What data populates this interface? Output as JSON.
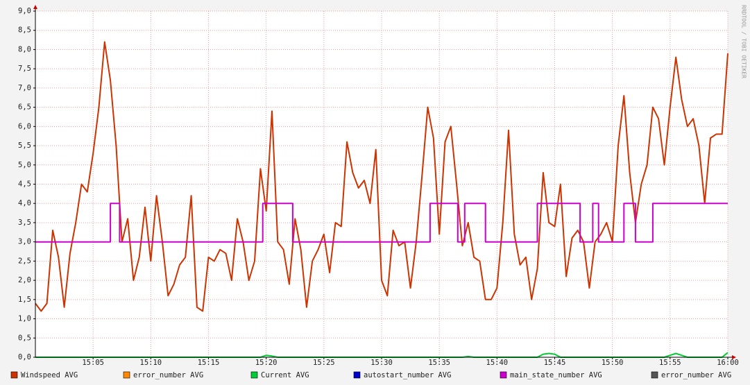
{
  "chart_data": {
    "type": "line",
    "watermark": "RRDTOOL / TOBI OETIKER",
    "x": [
      0,
      0.5,
      1,
      1.5,
      2,
      2.5,
      3,
      3.5,
      4,
      4.5,
      5,
      5.5,
      6,
      6.5,
      7,
      7.5,
      8,
      8.5,
      9,
      9.5,
      10,
      10.5,
      11,
      11.5,
      12,
      12.5,
      13,
      13.5,
      14,
      14.5,
      15,
      15.5,
      16,
      16.5,
      17,
      17.5,
      18,
      18.5,
      19,
      19.5,
      20,
      20.5,
      21,
      21.5,
      22,
      22.5,
      23,
      23.5,
      24,
      24.5,
      25,
      25.5,
      26,
      26.5,
      27,
      27.5,
      28,
      28.5,
      29,
      29.5,
      30,
      30.5,
      31,
      31.5,
      32,
      32.5,
      33,
      33.5,
      34,
      34.5,
      35,
      35.5,
      36,
      36.5,
      37,
      37.5,
      38,
      38.5,
      39,
      39.5,
      40,
      40.5,
      41,
      41.5,
      42,
      42.5,
      43,
      43.5,
      44,
      44.5,
      45,
      45.5,
      46,
      46.5,
      47,
      47.5,
      48,
      48.5,
      49,
      49.5,
      50,
      50.5,
      51,
      51.5,
      52,
      52.5,
      53,
      53.5,
      54,
      54.5,
      55,
      55.5,
      56,
      56.5,
      57,
      57.5,
      58,
      58.5,
      59,
      59.5,
      60
    ],
    "xlim": [
      0,
      60
    ],
    "xticks": [
      {
        "value": 5,
        "label": "15:05"
      },
      {
        "value": 10,
        "label": "15:10"
      },
      {
        "value": 15,
        "label": "15:15"
      },
      {
        "value": 20,
        "label": "15:20"
      },
      {
        "value": 25,
        "label": "15:25"
      },
      {
        "value": 30,
        "label": "15:30"
      },
      {
        "value": 35,
        "label": "15:35"
      },
      {
        "value": 40,
        "label": "15:40"
      },
      {
        "value": 45,
        "label": "15:45"
      },
      {
        "value": 50,
        "label": "15:50"
      },
      {
        "value": 55,
        "label": "15:55"
      },
      {
        "value": 60,
        "label": "16:00"
      }
    ],
    "ylim": [
      0,
      9
    ],
    "yticks": [
      {
        "value": 0,
        "label": "0,0"
      },
      {
        "value": 0.5,
        "label": "0,5"
      },
      {
        "value": 1,
        "label": "1,0"
      },
      {
        "value": 1.5,
        "label": "1,5"
      },
      {
        "value": 2,
        "label": "2,0"
      },
      {
        "value": 2.5,
        "label": "2,5"
      },
      {
        "value": 3,
        "label": "3,0"
      },
      {
        "value": 3.5,
        "label": "3,5"
      },
      {
        "value": 4,
        "label": "4,0"
      },
      {
        "value": 4.5,
        "label": "4,5"
      },
      {
        "value": 5,
        "label": "5,0"
      },
      {
        "value": 5.5,
        "label": "5,5"
      },
      {
        "value": 6,
        "label": "6,0"
      },
      {
        "value": 6.5,
        "label": "6,5"
      },
      {
        "value": 7,
        "label": "7,0"
      },
      {
        "value": 7.5,
        "label": "7,5"
      },
      {
        "value": 8,
        "label": "8,0"
      },
      {
        "value": 8.5,
        "label": "8,5"
      },
      {
        "value": 9,
        "label": "9,0"
      }
    ],
    "grid": true,
    "series": [
      {
        "name": "Windspeed AVG",
        "color": "#cc3300",
        "values": [
          1.4,
          1.2,
          1.4,
          3.3,
          2.6,
          1.3,
          2.7,
          3.5,
          4.5,
          4.3,
          5.3,
          6.5,
          8.2,
          7.2,
          5.5,
          3.0,
          3.6,
          2.0,
          2.6,
          3.9,
          2.5,
          4.2,
          3.0,
          1.6,
          1.9,
          2.4,
          2.6,
          4.2,
          1.3,
          1.2,
          2.6,
          2.5,
          2.8,
          2.7,
          2.0,
          3.6,
          3.0,
          2.0,
          2.5,
          4.9,
          3.8,
          6.4,
          3.0,
          2.8,
          1.9,
          3.6,
          2.8,
          1.3,
          2.5,
          2.8,
          3.2,
          2.2,
          3.5,
          3.4,
          5.6,
          4.8,
          4.4,
          4.6,
          4.0,
          5.4,
          2.0,
          1.6,
          3.3,
          2.9,
          3.0,
          1.8,
          3.0,
          4.7,
          6.5,
          5.7,
          3.2,
          5.6,
          6.0,
          4.5,
          2.9,
          3.5,
          2.6,
          2.5,
          1.5,
          1.5,
          1.8,
          3.5,
          5.9,
          3.2,
          2.4,
          2.6,
          1.5,
          2.3,
          4.8,
          3.5,
          3.4,
          4.5,
          2.1,
          3.1,
          3.3,
          3.0,
          1.8,
          3.0,
          3.2,
          3.5,
          3.0,
          5.5,
          6.8,
          4.8,
          3.5,
          4.5,
          5.0,
          6.5,
          6.2,
          5.0,
          6.5,
          7.8,
          6.7,
          6.0,
          6.2,
          5.5,
          4.0,
          5.7,
          5.8,
          5.8,
          7.9
        ]
      },
      {
        "name": "error_number AVG",
        "color": "#ff8800"
      },
      {
        "name": "Current AVG",
        "color": "#00cc33",
        "values": [
          0,
          0,
          0,
          0,
          0,
          0,
          0,
          0,
          0,
          0,
          0,
          0,
          0,
          0,
          0,
          0,
          0,
          0,
          0,
          0,
          0,
          0,
          0,
          0,
          0,
          0,
          0,
          0,
          0,
          0,
          0,
          0,
          0,
          0,
          0,
          0,
          0,
          0,
          0,
          0,
          0.05,
          0.03,
          0,
          0,
          0,
          0,
          0,
          0,
          0,
          0,
          0,
          0,
          0,
          0,
          0,
          0,
          0,
          0,
          0,
          0,
          0,
          0,
          0,
          0,
          0,
          0,
          0,
          0,
          0,
          0,
          0,
          0,
          0,
          0,
          0,
          0.02,
          0,
          0,
          0,
          0,
          0,
          0,
          0,
          0,
          0,
          0,
          0,
          0,
          0.08,
          0.1,
          0.08,
          0,
          0,
          0,
          0,
          0,
          0,
          0,
          0,
          0,
          0,
          0,
          0,
          0,
          0,
          0,
          0,
          0,
          0,
          0,
          0.05,
          0.1,
          0.05,
          0,
          0,
          0,
          0,
          0,
          0,
          0,
          0.12
        ]
      },
      {
        "name": "autostart_number AVG",
        "color": "#0000cc"
      },
      {
        "name": "main_state_number AVG",
        "color": "#cc00cc",
        "x": [
          0,
          6.5,
          6.5,
          7.3,
          7.3,
          19.7,
          19.7,
          22.3,
          22.3,
          34.2,
          34.2,
          36.6,
          36.6,
          37.2,
          37.2,
          39,
          39,
          43.5,
          43.5,
          47.2,
          47.2,
          48.3,
          48.3,
          48.8,
          48.8,
          51,
          51,
          52,
          52,
          53.5,
          53.5,
          60
        ],
        "values": [
          3,
          3,
          4,
          4,
          3,
          3,
          4,
          4,
          3,
          3,
          4,
          4,
          3,
          3,
          4,
          4,
          3,
          3,
          4,
          4,
          3,
          3,
          4,
          4,
          3,
          3,
          4,
          4,
          3,
          3,
          4,
          4
        ]
      },
      {
        "name": "error_number AVG",
        "color": "#555555"
      }
    ]
  }
}
